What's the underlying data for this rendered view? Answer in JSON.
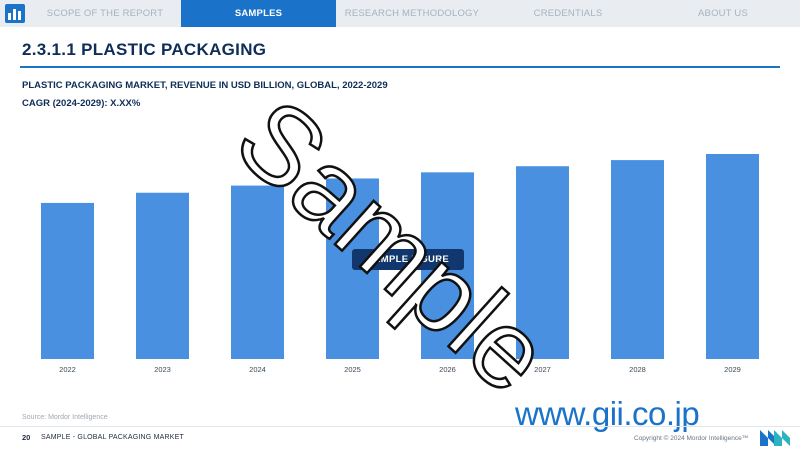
{
  "nav": {
    "tabs": [
      {
        "label": "SCOPE OF THE REPORT",
        "active": false
      },
      {
        "label": "SAMPLES",
        "active": true
      },
      {
        "label": "RESEARCH METHODOLOGY",
        "active": false
      },
      {
        "label": "CREDENTIALS",
        "active": false
      },
      {
        "label": "ABOUT US",
        "active": false
      }
    ]
  },
  "header": {
    "title": "2.3.1.1 PLASTIC PACKAGING",
    "chart_title": "PLASTIC PACKAGING MARKET, REVENUE IN USD BILLION, GLOBAL, 2022-2029",
    "cagr": "CAGR (2024-2029): X.XX%"
  },
  "chart_data": {
    "type": "bar",
    "categories": [
      "2022",
      "2023",
      "2024",
      "2025",
      "2026",
      "2027",
      "2028",
      "2029"
    ],
    "values": [
      153,
      163,
      170,
      177,
      183,
      189,
      195,
      201
    ],
    "ylim": [
      0,
      250
    ],
    "grid": false,
    "title": "",
    "xlabel": "",
    "ylabel": "",
    "bar_color": "#4a90e0"
  },
  "overlay": {
    "figure_label": "SAMPLE FIGURE",
    "watermark": "Sample"
  },
  "footer": {
    "source": "Source: Mordor Intelligence",
    "page_number": "20",
    "text": "SAMPLE - GLOBAL PACKAGING MARKET",
    "gii": "www.gii.co.jp",
    "copyright": "Copyright © 2024 Mordor Intelligence™"
  },
  "colors": {
    "accent": "#1a73c8",
    "title": "#0f2d57",
    "bar": "#4a90e0",
    "badge": "#12376e"
  }
}
